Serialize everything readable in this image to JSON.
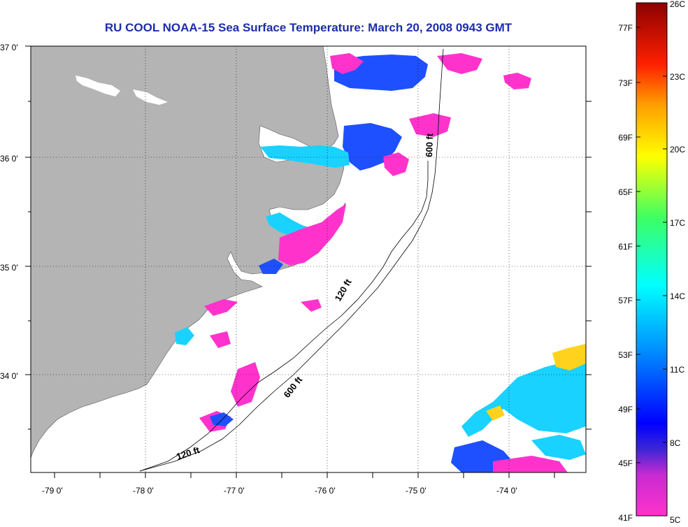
{
  "title": "RU COOL  NOAA-15  Sea Surface Temperature:  March 20, 2008 0943 GMT",
  "map": {
    "lat_labels": [
      "37 0'",
      "36 0'",
      "35 0'",
      "34 0'"
    ],
    "lon_labels": [
      "-79 0'",
      "-78 0'",
      "-77 0'",
      "-76 0'",
      "-75 0'",
      "-74 0'"
    ],
    "contour_labels": [
      "120 ft",
      "600 ft",
      "120 ft",
      "600 ft"
    ],
    "colors": {
      "land": "#b4b4b4",
      "ocean": "#ffffff",
      "sst_cold": "#ff33cc",
      "sst_blue": "#1e50ff",
      "sst_cyan": "#19d2ff",
      "sst_warm": "#ffd21e"
    }
  },
  "colorbar": {
    "fahrenheit_labels": [
      "77F",
      "73F",
      "69F",
      "65F",
      "61F",
      "57F",
      "53F",
      "49F",
      "45F",
      "41F"
    ],
    "celsius_labels": [
      "26C",
      "23C",
      "20C",
      "17C",
      "14C",
      "11C",
      "8C",
      "5C"
    ],
    "range_c": [
      5,
      26
    ]
  }
}
